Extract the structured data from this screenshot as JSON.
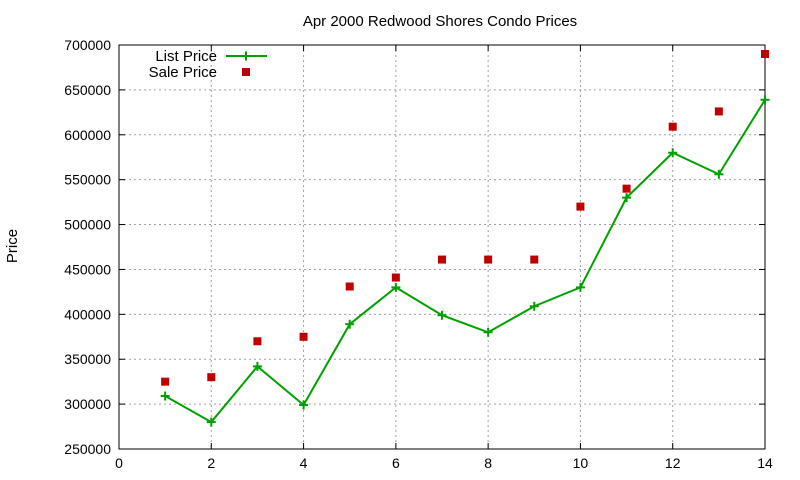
{
  "chart_data": {
    "type": "line",
    "title": "Apr 2000 Redwood Shores Condo Prices",
    "xlabel": "",
    "ylabel": "Price",
    "xlim": [
      0,
      14
    ],
    "ylim": [
      250000,
      700000
    ],
    "xticks": [
      "0",
      "2",
      "4",
      "6",
      "8",
      "10",
      "12",
      "14"
    ],
    "yticks": [
      "250000",
      "300000",
      "350000",
      "400000",
      "450000",
      "500000",
      "550000",
      "600000",
      "650000",
      "700000"
    ],
    "grid": true,
    "legend_position": "top-left",
    "series": [
      {
        "name": "List Price",
        "style": "line-with-plus-markers",
        "color": "#00a000",
        "x": [
          1,
          2,
          3,
          4,
          5,
          6,
          7,
          8,
          9,
          10,
          11,
          12,
          13,
          14
        ],
        "y": [
          309000,
          280000,
          342000,
          299000,
          389000,
          430000,
          399000,
          380000,
          409000,
          430000,
          530000,
          580000,
          556000,
          639000
        ]
      },
      {
        "name": "Sale Price",
        "style": "square-markers",
        "color": "#c00000",
        "x": [
          1,
          2,
          3,
          4,
          5,
          6,
          7,
          8,
          9,
          10,
          11,
          12,
          13,
          14
        ],
        "y": [
          325000,
          330000,
          370000,
          375000,
          431000,
          441000,
          461000,
          461000,
          461000,
          520000,
          540000,
          609000,
          626000,
          690000
        ]
      }
    ]
  }
}
